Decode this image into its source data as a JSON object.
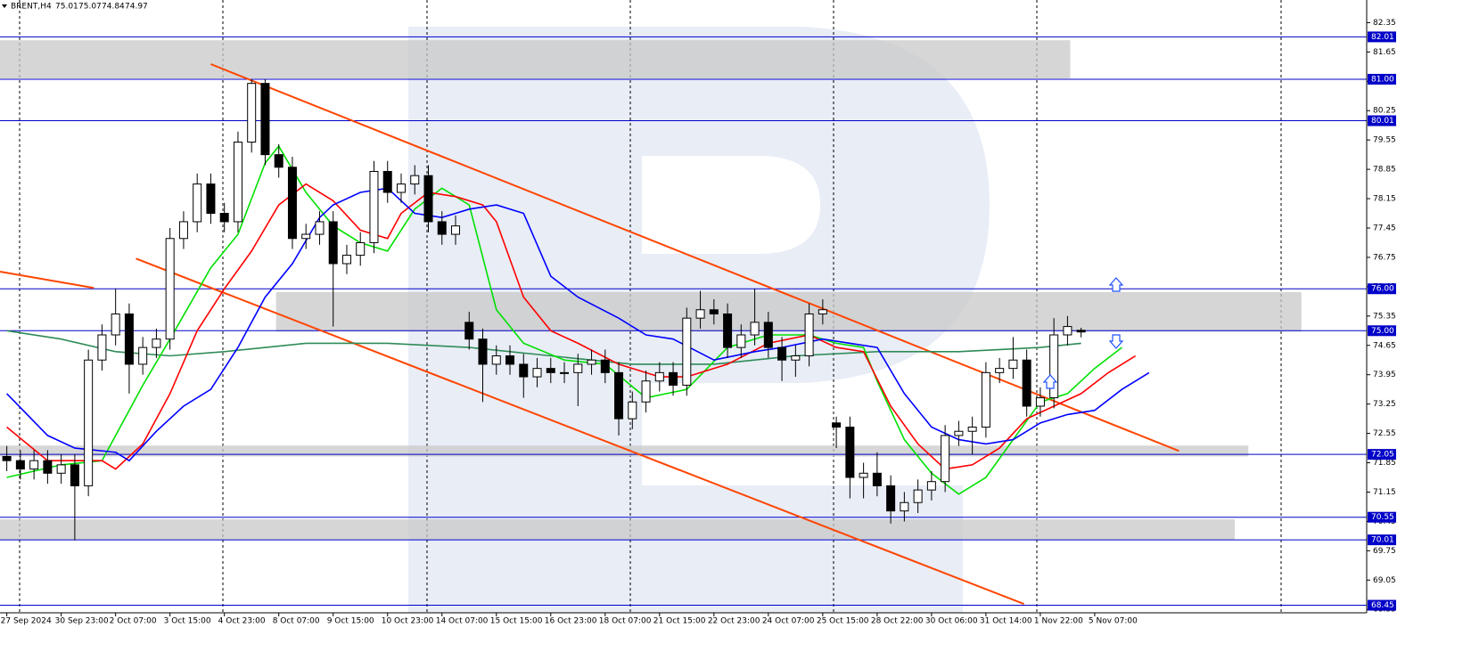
{
  "chart_data": {
    "type": "candlestick",
    "symbol": "BRENT,H4",
    "open": [
      72.0,
      71.9,
      71.7,
      71.9,
      71.6,
      71.8,
      71.3,
      74.3,
      74.9,
      75.4,
      74.2,
      74.6,
      74.8,
      77.2,
      77.6,
      78.5,
      77.8,
      77.6,
      79.5,
      80.9,
      79.2,
      78.9,
      77.2,
      77.3,
      77.6,
      76.6,
      76.8,
      77.1,
      78.8,
      78.3,
      78.5,
      78.7,
      77.6,
      77.3,
      75.2,
      74.8,
      74.2,
      74.4,
      74.2,
      73.9,
      74.1,
      74.0,
      74.0,
      74.2,
      74.3,
      74.0,
      72.9,
      73.3,
      73.8,
      74.0,
      73.7,
      75.3,
      75.5,
      75.4,
      74.6,
      74.9,
      75.2,
      74.6,
      74.3,
      74.4,
      75.4,
      72.8,
      72.7,
      71.5,
      71.6,
      71.3,
      70.7,
      70.9,
      71.2,
      71.4,
      72.5,
      72.6,
      72.7,
      74.0,
      74.1,
      74.3,
      73.2,
      73.4,
      74.9,
      75.01
    ],
    "high": [
      72.25,
      72.15,
      72.15,
      72.15,
      72.05,
      72.05,
      74.55,
      75.15,
      76.0,
      75.65,
      74.85,
      75.05,
      77.45,
      77.85,
      78.75,
      78.75,
      78.05,
      79.75,
      81.0,
      81.0,
      79.45,
      79.15,
      77.55,
      77.85,
      77.85,
      77.05,
      77.35,
      79.05,
      79.05,
      78.75,
      78.95,
      78.95,
      77.85,
      77.75,
      75.45,
      75.05,
      74.65,
      74.65,
      74.45,
      74.35,
      74.35,
      74.25,
      74.45,
      74.55,
      74.55,
      74.25,
      73.55,
      74.05,
      74.25,
      74.25,
      75.55,
      75.95,
      75.75,
      75.65,
      75.15,
      76.0,
      75.45,
      74.85,
      74.65,
      75.65,
      75.75,
      72.95,
      72.95,
      71.85,
      72.1,
      71.55,
      71.15,
      71.45,
      71.65,
      72.75,
      72.85,
      72.95,
      74.25,
      74.35,
      74.85,
      74.55,
      73.65,
      75.3,
      75.35,
      75.07
    ],
    "low": [
      71.65,
      71.45,
      71.45,
      71.35,
      71.35,
      70.0,
      71.05,
      74.05,
      74.65,
      73.5,
      73.95,
      74.35,
      74.55,
      76.95,
      77.35,
      77.55,
      77.35,
      77.35,
      79.25,
      78.95,
      78.65,
      76.95,
      76.95,
      77.05,
      75.1,
      76.35,
      76.55,
      76.85,
      78.05,
      78.05,
      78.25,
      77.35,
      77.05,
      77.05,
      74.55,
      73.3,
      73.95,
      73.95,
      73.4,
      73.65,
      73.75,
      73.75,
      73.2,
      73.95,
      73.75,
      72.5,
      72.65,
      73.05,
      73.55,
      73.45,
      73.45,
      75.05,
      75.15,
      74.35,
      74.35,
      74.65,
      74.35,
      73.8,
      73.9,
      74.15,
      75.15,
      72.2,
      71.0,
      71.0,
      71.05,
      70.4,
      70.45,
      70.65,
      70.95,
      71.15,
      72.25,
      72.05,
      72.45,
      73.75,
      73.85,
      72.95,
      72.95,
      73.15,
      74.65,
      74.84
    ],
    "close": [
      71.9,
      71.7,
      71.9,
      71.6,
      71.8,
      71.3,
      74.3,
      74.9,
      75.4,
      74.2,
      74.6,
      74.8,
      77.2,
      77.6,
      78.5,
      77.8,
      77.6,
      79.5,
      80.9,
      79.2,
      78.9,
      77.2,
      77.3,
      77.6,
      76.6,
      76.8,
      77.1,
      78.8,
      78.3,
      78.5,
      78.7,
      77.6,
      77.3,
      77.5,
      74.8,
      74.2,
      74.4,
      74.2,
      73.9,
      74.1,
      74.0,
      74.0,
      74.2,
      74.3,
      74.0,
      72.9,
      73.3,
      73.8,
      74.0,
      73.7,
      75.3,
      75.5,
      75.4,
      74.6,
      74.9,
      75.2,
      74.6,
      74.3,
      74.4,
      75.4,
      75.5,
      72.7,
      71.5,
      71.6,
      71.3,
      70.7,
      70.9,
      71.2,
      71.4,
      72.5,
      72.6,
      72.7,
      74.0,
      74.1,
      74.3,
      73.2,
      73.4,
      74.9,
      75.1,
      74.97
    ],
    "xlim": [
      -0.5,
      100
    ],
    "ylim": [
      68.27,
      82.89
    ],
    "xticks": [
      {
        "value": 0,
        "label": "27 Sep 2024"
      },
      {
        "value": 4,
        "label": "30 Sep 23:00"
      },
      {
        "value": 8,
        "label": "2 Oct 07:00"
      },
      {
        "value": 12,
        "label": "3 Oct 15:00"
      },
      {
        "value": 16,
        "label": "4 Oct 23:00"
      },
      {
        "value": 20,
        "label": "8 Oct 07:00"
      },
      {
        "value": 24,
        "label": "9 Oct 15:00"
      },
      {
        "value": 28,
        "label": "10 Oct 23:00"
      },
      {
        "value": 32,
        "label": "14 Oct 07:00"
      },
      {
        "value": 36,
        "label": "15 Oct 15:00"
      },
      {
        "value": 40,
        "label": "16 Oct 23:00"
      },
      {
        "value": 44,
        "label": "18 Oct 07:00"
      },
      {
        "value": 48,
        "label": "21 Oct 15:00"
      },
      {
        "value": 52,
        "label": "22 Oct 23:00"
      },
      {
        "value": 56,
        "label": "24 Oct 07:00"
      },
      {
        "value": 60,
        "label": "25 Oct 15:00"
      },
      {
        "value": 64,
        "label": "28 Oct 22:00"
      },
      {
        "value": 68,
        "label": "30 Oct 06:00"
      },
      {
        "value": 72,
        "label": "31 Oct 14:00"
      },
      {
        "value": 76,
        "label": "1 Nov 22:00"
      },
      {
        "value": 80,
        "label": "5 Nov 07:00"
      }
    ],
    "yticks": [
      82.35,
      81.65,
      80.95,
      80.25,
      79.55,
      78.85,
      78.15,
      77.45,
      76.75,
      76.05,
      75.35,
      74.65,
      73.95,
      73.25,
      72.55,
      71.85,
      71.15,
      70.45,
      69.75,
      69.05,
      68.35
    ],
    "grid": true,
    "up_color": "#ffffff",
    "down_color": "#000000",
    "wick_color": "#000000",
    "series": [
      {
        "color": "#2e8b57",
        "x": [
          0,
          4,
          8,
          12,
          16,
          22,
          28,
          34,
          40,
          46,
          52,
          58,
          64,
          70,
          76,
          79
        ],
        "values": [
          75.0,
          74.8,
          74.5,
          74.4,
          74.5,
          74.7,
          74.7,
          74.6,
          74.4,
          74.2,
          74.2,
          74.4,
          74.5,
          74.5,
          74.6,
          74.7
        ]
      },
      {
        "color": "#00e000",
        "x": [
          0,
          4,
          7,
          10,
          12,
          15,
          17,
          19,
          20,
          22,
          24,
          26,
          28,
          30,
          32,
          34,
          36,
          38,
          41,
          44,
          47,
          50,
          53,
          56,
          59,
          61,
          63,
          64,
          66,
          68,
          70,
          72,
          74,
          76,
          78,
          80,
          82
        ],
        "values": [
          71.5,
          71.8,
          71.9,
          73.7,
          74.8,
          76.5,
          77.3,
          79.0,
          79.4,
          78.3,
          77.5,
          77.1,
          76.9,
          77.9,
          78.4,
          78.0,
          75.5,
          74.7,
          74.3,
          74.2,
          73.4,
          73.6,
          74.6,
          74.9,
          74.9,
          74.7,
          74.6,
          73.8,
          72.4,
          71.6,
          71.1,
          71.5,
          72.4,
          73.3,
          73.5,
          74.1,
          74.6
        ]
      },
      {
        "color": "#ff0000",
        "x": [
          0,
          3,
          7,
          8,
          10,
          12,
          14,
          16,
          18,
          20,
          22,
          24,
          26,
          28,
          29,
          31,
          33,
          35,
          36,
          38,
          40,
          42,
          45,
          48,
          50,
          53,
          56,
          59,
          61,
          63,
          65,
          67,
          69,
          71,
          73,
          75,
          77,
          79,
          81,
          83
        ],
        "values": [
          72.7,
          71.9,
          71.9,
          71.7,
          72.3,
          73.5,
          75.0,
          76.0,
          76.9,
          78.0,
          78.5,
          78.1,
          77.4,
          77.2,
          77.8,
          78.3,
          78.2,
          78.0,
          77.6,
          75.8,
          75.0,
          74.7,
          74.2,
          73.9,
          73.9,
          74.2,
          74.7,
          74.9,
          74.6,
          74.5,
          73.2,
          72.3,
          71.7,
          71.8,
          72.2,
          72.9,
          73.2,
          73.5,
          74.0,
          74.4
        ]
      },
      {
        "color": "#0000ff",
        "x": [
          0,
          3,
          5,
          8,
          9,
          11,
          13,
          15,
          17,
          19,
          21,
          23,
          24,
          26,
          28,
          30,
          32,
          34,
          36,
          38,
          40,
          42,
          45,
          47,
          49,
          52,
          55,
          57,
          60,
          62,
          64,
          66,
          68,
          70,
          72,
          74,
          76,
          78,
          80,
          82,
          84
        ],
        "values": [
          73.5,
          72.5,
          72.2,
          72.1,
          71.9,
          72.6,
          73.2,
          73.6,
          74.6,
          75.8,
          76.6,
          77.7,
          78.0,
          78.3,
          78.4,
          77.8,
          77.7,
          77.9,
          78.0,
          77.8,
          76.3,
          75.8,
          75.3,
          74.9,
          74.8,
          74.3,
          74.5,
          74.6,
          74.8,
          74.7,
          74.6,
          73.5,
          72.7,
          72.4,
          72.3,
          72.4,
          72.8,
          73.0,
          73.1,
          73.6,
          74.0
        ]
      }
    ],
    "levels_color": "#0000c8",
    "levels": [
      {
        "value": 82.01,
        "label": "82.01"
      },
      {
        "value": 81.0,
        "label": "81.00"
      },
      {
        "value": 80.01,
        "label": "80.01"
      },
      {
        "value": 76.0,
        "label": "76.00"
      },
      {
        "value": 75.0,
        "label": "75.00"
      },
      {
        "value": 72.05,
        "label": "72.05"
      },
      {
        "value": 70.55,
        "label": "70.55"
      },
      {
        "value": 70.01,
        "label": "70.01"
      },
      {
        "value": 68.45,
        "label": "68.45"
      }
    ],
    "zones_color": "#c8c8c8",
    "zones": [
      {
        "x": [
          -0.5,
          78.2
        ],
        "values": [
          81.93,
          81.02
        ]
      },
      {
        "x": [
          19.8,
          95.2
        ],
        "values": [
          75.92,
          74.98
        ]
      },
      {
        "x": [
          -0.5,
          91.3
        ],
        "values": [
          72.26,
          72.0
        ]
      },
      {
        "x": [
          -0.5,
          90.3
        ],
        "values": [
          70.5,
          70.01
        ]
      }
    ],
    "trend_color": "#ff4500",
    "trendlines": [
      {
        "x": [
          15,
          86.2
        ],
        "values": [
          81.36,
          72.13
        ]
      },
      {
        "x": [
          9.5,
          74.8
        ],
        "values": [
          76.72,
          68.48
        ]
      },
      {
        "x": [
          -0.5,
          6.4
        ],
        "values": [
          76.41,
          76.02
        ]
      }
    ]
  }
}
